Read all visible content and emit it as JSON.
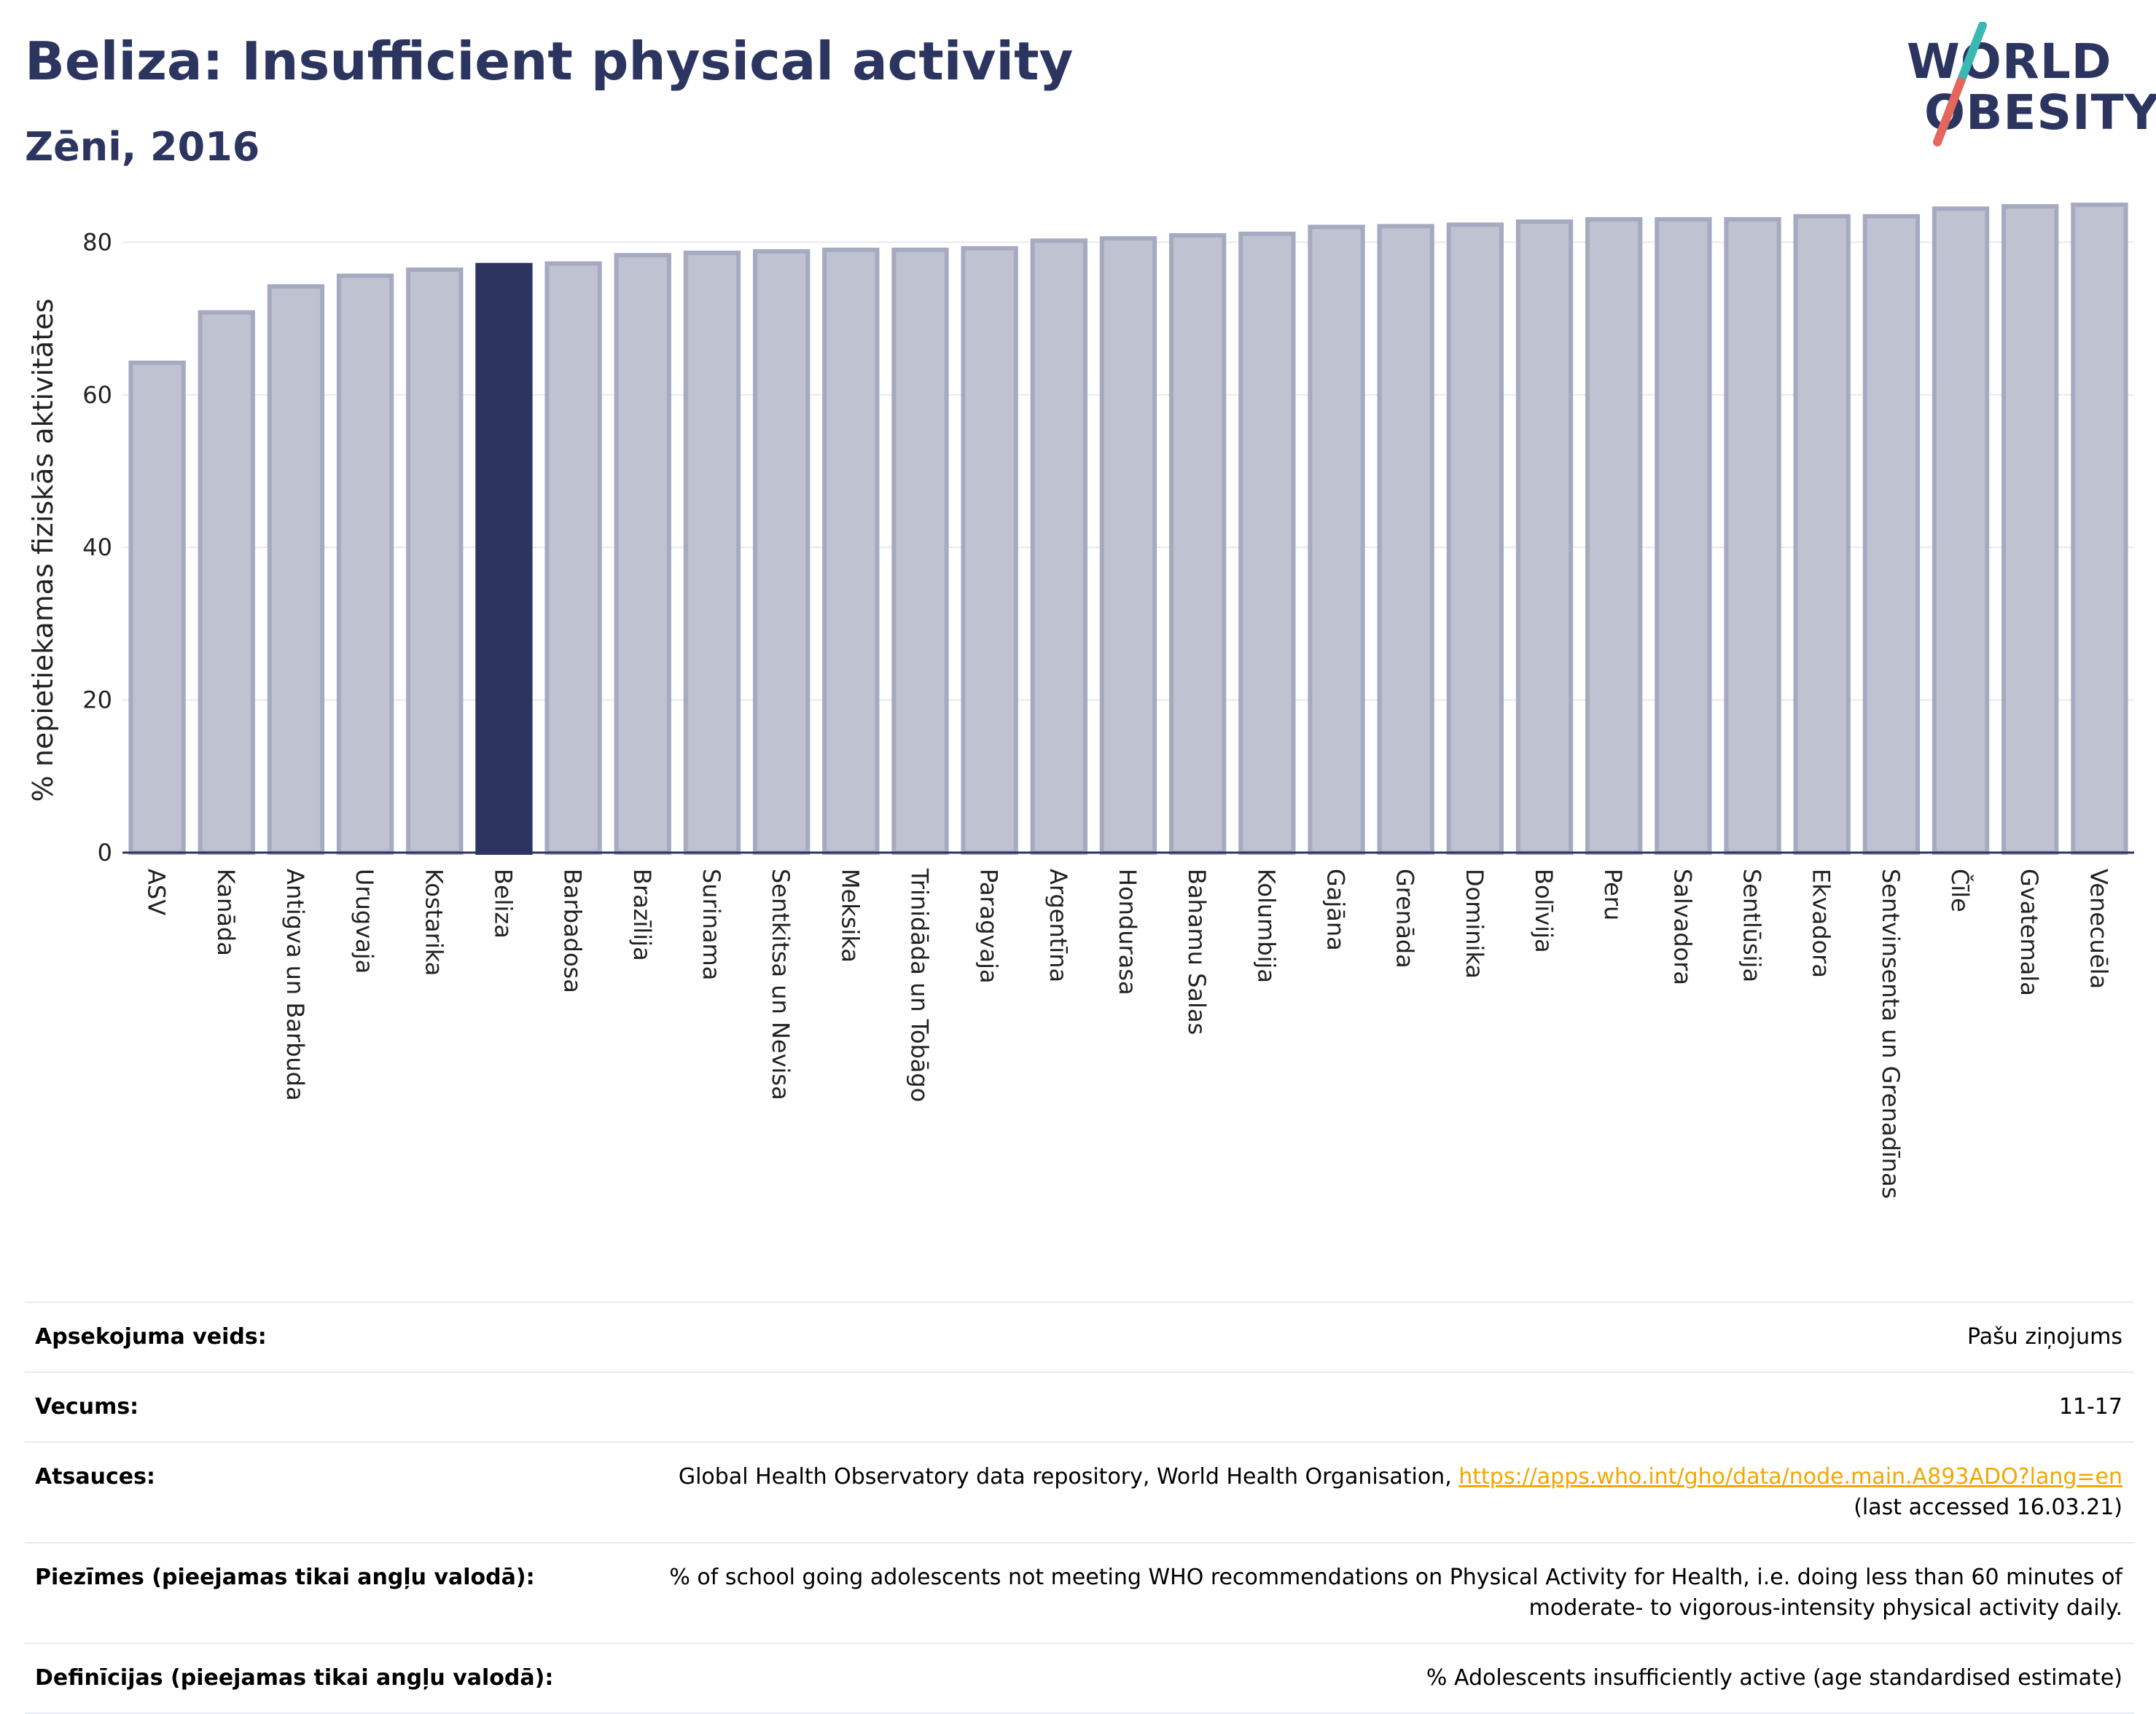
{
  "header": {
    "title": "Beliza: Insufficient physical activity",
    "subtitle": "Zēni, 2016"
  },
  "logo": {
    "line1": "WORLD",
    "line2": "OBESITY",
    "colors": [
      "#2b3560",
      "#3ab8b2",
      "#e5665c"
    ]
  },
  "chart_data": {
    "type": "bar",
    "ylabel": "% nepietiekamas fiziskās aktivitātes",
    "ylim": [
      0,
      85
    ],
    "yticks": [
      0,
      20,
      40,
      60,
      80
    ],
    "grid": true,
    "categories": [
      "ASV",
      "Kanāda",
      "Antigva un Barbuda",
      "Urugvaja",
      "Kostarika",
      "Beliza",
      "Barbadosa",
      "Brazīlija",
      "Surinama",
      "Sentkitsa un Nevisa",
      "Meksika",
      "Trinidāda un Tobāgo",
      "Paragvaja",
      "Argentīna",
      "Hondurasa",
      "Bahamu Salas",
      "Kolumbija",
      "Gajāna",
      "Grenāda",
      "Dominika",
      "Bolīvija",
      "Peru",
      "Salvadora",
      "Sentlūsija",
      "Ekvadora",
      "Sentvinsenta un Grenadīnas",
      "Čīle",
      "Gvatemala",
      "Venecuēla"
    ],
    "values": [
      64.2,
      70.8,
      74.2,
      75.6,
      76.4,
      77.0,
      77.2,
      78.3,
      78.6,
      78.8,
      79.0,
      79.0,
      79.2,
      80.2,
      80.5,
      80.9,
      81.1,
      82.0,
      82.1,
      82.3,
      82.7,
      83.0,
      83.0,
      83.0,
      83.4,
      83.4,
      84.4,
      84.7,
      84.9
    ],
    "highlight": "Beliza",
    "colors": {
      "bar": "#bec2d1",
      "bar_border": "#a6aac0",
      "highlight": "#2b3560",
      "grid": "#e7eaf1",
      "axis": "#2b3560"
    }
  },
  "meta": [
    {
      "label": "Apsekojuma veids:",
      "value": "Pašu ziņojums"
    },
    {
      "label": "Vecums:",
      "value": "11-17"
    },
    {
      "label": "Atsauces:",
      "value_text": "Global Health Observatory data repository, World Health Organisation, ",
      "link": "https://apps.who.int/gho/data/node.main.A893ADO?lang=en",
      "value_after": "(last accessed 16.03.21)"
    },
    {
      "label": "Piezīmes (pieejamas tikai angļu valodā):",
      "value": "% of school going adolescents not meeting WHO recommendations on Physical Activity for Health, i.e. doing less than 60 minutes of moderate- to vigorous-intensity physical activity daily."
    },
    {
      "label": "Definīcijas (pieejamas tikai angļu valodā):",
      "value": "% Adolescents insufficiently active (age standardised estimate)"
    }
  ]
}
